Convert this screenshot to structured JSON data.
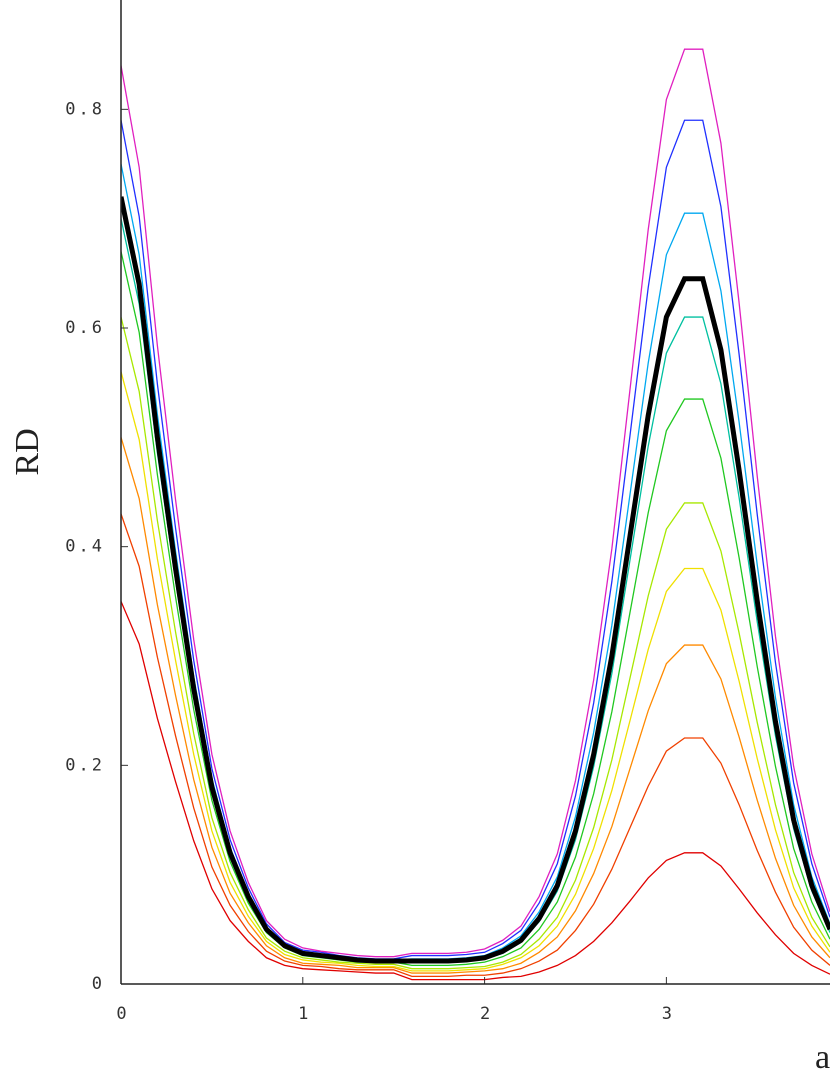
{
  "chart_data": {
    "type": "line",
    "ylabel": "RD",
    "xlabel": "a",
    "x": [
      0,
      0.1,
      0.2,
      0.3,
      0.4,
      0.5,
      0.6,
      0.7,
      0.8,
      0.9,
      1,
      1.1,
      1.2,
      1.3,
      1.4,
      1.5,
      1.6,
      1.7,
      1.8,
      1.9,
      2,
      2.1,
      2.2,
      2.3,
      2.4,
      2.5,
      2.6,
      2.7,
      2.8,
      2.9,
      3,
      3.1,
      3.2,
      3.3,
      3.4,
      3.5,
      3.6,
      3.7,
      3.8,
      3.9
    ],
    "xlim": [
      0,
      3.9
    ],
    "ylim": [
      0,
      0.9
    ],
    "xticks": [
      0,
      1,
      2,
      3
    ],
    "yticks": [
      0,
      0.2,
      0.4,
      0.6,
      0.8
    ],
    "series": [
      {
        "color": "#e00000",
        "line_width": 1.3,
        "values": [
          0.35,
          0.311,
          0.243,
          0.185,
          0.131,
          0.087,
          0.058,
          0.039,
          0.024,
          0.017,
          0.014,
          0.013,
          0.012,
          0.011,
          0.01,
          0.01,
          0.004,
          0.004,
          0.004,
          0.004,
          0.004,
          0.006,
          0.007,
          0.011,
          0.017,
          0.026,
          0.039,
          0.056,
          0.076,
          0.097,
          0.113,
          0.12,
          0.12,
          0.108,
          0.087,
          0.065,
          0.045,
          0.028,
          0.017,
          0.009
        ]
      },
      {
        "color": "#f04000",
        "line_width": 1.3,
        "values": [
          0.43,
          0.382,
          0.299,
          0.227,
          0.161,
          0.107,
          0.072,
          0.048,
          0.03,
          0.021,
          0.017,
          0.016,
          0.014,
          0.013,
          0.013,
          0.013,
          0.007,
          0.007,
          0.007,
          0.008,
          0.008,
          0.01,
          0.014,
          0.021,
          0.031,
          0.049,
          0.073,
          0.105,
          0.143,
          0.181,
          0.213,
          0.225,
          0.225,
          0.202,
          0.164,
          0.122,
          0.084,
          0.052,
          0.031,
          0.017
        ]
      },
      {
        "color": "#ff8a00",
        "line_width": 1.3,
        "values": [
          0.5,
          0.444,
          0.347,
          0.264,
          0.187,
          0.125,
          0.083,
          0.056,
          0.035,
          0.024,
          0.019,
          0.018,
          0.017,
          0.015,
          0.015,
          0.015,
          0.01,
          0.01,
          0.01,
          0.011,
          0.012,
          0.014,
          0.019,
          0.029,
          0.043,
          0.067,
          0.101,
          0.144,
          0.197,
          0.25,
          0.293,
          0.31,
          0.31,
          0.279,
          0.226,
          0.168,
          0.115,
          0.072,
          0.043,
          0.024
        ]
      },
      {
        "color": "#f0e000",
        "line_width": 1.3,
        "values": [
          0.56,
          0.498,
          0.389,
          0.296,
          0.21,
          0.14,
          0.093,
          0.062,
          0.039,
          0.027,
          0.022,
          0.02,
          0.019,
          0.017,
          0.016,
          0.016,
          0.012,
          0.012,
          0.012,
          0.013,
          0.014,
          0.018,
          0.024,
          0.035,
          0.053,
          0.082,
          0.124,
          0.177,
          0.241,
          0.306,
          0.359,
          0.38,
          0.38,
          0.342,
          0.277,
          0.206,
          0.141,
          0.088,
          0.053,
          0.029
        ]
      },
      {
        "color": "#a8e800",
        "line_width": 1.3,
        "values": [
          0.61,
          0.542,
          0.424,
          0.322,
          0.229,
          0.152,
          0.102,
          0.068,
          0.042,
          0.03,
          0.024,
          0.022,
          0.02,
          0.019,
          0.018,
          0.018,
          0.014,
          0.014,
          0.014,
          0.015,
          0.016,
          0.02,
          0.027,
          0.041,
          0.061,
          0.095,
          0.143,
          0.205,
          0.28,
          0.355,
          0.416,
          0.44,
          0.44,
          0.396,
          0.321,
          0.239,
          0.164,
          0.102,
          0.061,
          0.034
        ]
      },
      {
        "color": "#20c820",
        "line_width": 1.3,
        "values": [
          0.67,
          0.596,
          0.466,
          0.354,
          0.251,
          0.168,
          0.112,
          0.074,
          0.047,
          0.033,
          0.026,
          0.024,
          0.022,
          0.02,
          0.02,
          0.02,
          0.017,
          0.017,
          0.017,
          0.018,
          0.02,
          0.025,
          0.033,
          0.05,
          0.075,
          0.116,
          0.174,
          0.249,
          0.34,
          0.431,
          0.506,
          0.535,
          0.535,
          0.481,
          0.39,
          0.29,
          0.199,
          0.124,
          0.075,
          0.041
        ]
      },
      {
        "color": "#00c0a0",
        "line_width": 1.3,
        "values": [
          0.7,
          0.622,
          0.486,
          0.369,
          0.262,
          0.175,
          0.117,
          0.078,
          0.049,
          0.034,
          0.027,
          0.025,
          0.023,
          0.021,
          0.02,
          0.02,
          0.02,
          0.02,
          0.02,
          0.021,
          0.023,
          0.028,
          0.038,
          0.057,
          0.085,
          0.132,
          0.199,
          0.284,
          0.388,
          0.492,
          0.577,
          0.61,
          0.61,
          0.549,
          0.445,
          0.331,
          0.227,
          0.142,
          0.085,
          0.047
        ]
      },
      {
        "color": "#00a8f0",
        "line_width": 1.3,
        "values": [
          0.75,
          0.667,
          0.521,
          0.396,
          0.281,
          0.188,
          0.125,
          0.083,
          0.052,
          0.036,
          0.029,
          0.027,
          0.025,
          0.023,
          0.022,
          0.022,
          0.023,
          0.023,
          0.023,
          0.024,
          0.026,
          0.033,
          0.044,
          0.066,
          0.098,
          0.153,
          0.23,
          0.328,
          0.448,
          0.568,
          0.667,
          0.705,
          0.705,
          0.634,
          0.514,
          0.383,
          0.262,
          0.164,
          0.098,
          0.055
        ]
      },
      {
        "color": "#2030ff",
        "line_width": 1.3,
        "values": [
          0.79,
          0.702,
          0.549,
          0.417,
          0.296,
          0.197,
          0.132,
          0.088,
          0.055,
          0.038,
          0.031,
          0.029,
          0.026,
          0.024,
          0.023,
          0.023,
          0.026,
          0.026,
          0.026,
          0.027,
          0.029,
          0.037,
          0.049,
          0.074,
          0.11,
          0.172,
          0.257,
          0.368,
          0.502,
          0.637,
          0.747,
          0.79,
          0.79,
          0.711,
          0.576,
          0.429,
          0.294,
          0.184,
          0.11,
          0.061
        ]
      },
      {
        "color": "#e020c0",
        "line_width": 1.3,
        "values": [
          0.84,
          0.747,
          0.584,
          0.443,
          0.315,
          0.21,
          0.14,
          0.093,
          0.058,
          0.041,
          0.033,
          0.03,
          0.028,
          0.026,
          0.025,
          0.025,
          0.028,
          0.028,
          0.028,
          0.029,
          0.032,
          0.04,
          0.053,
          0.08,
          0.119,
          0.186,
          0.278,
          0.398,
          0.544,
          0.69,
          0.809,
          0.855,
          0.855,
          0.769,
          0.623,
          0.464,
          0.318,
          0.199,
          0.119,
          0.066
        ]
      },
      {
        "color": "#000000",
        "line_width": 5,
        "values": [
          0.72,
          0.64,
          0.5,
          0.38,
          0.27,
          0.18,
          0.12,
          0.08,
          0.05,
          0.035,
          0.028,
          0.026,
          0.024,
          0.022,
          0.021,
          0.021,
          0.021,
          0.021,
          0.021,
          0.022,
          0.024,
          0.03,
          0.04,
          0.06,
          0.09,
          0.14,
          0.21,
          0.3,
          0.41,
          0.52,
          0.61,
          0.645,
          0.645,
          0.58,
          0.47,
          0.35,
          0.24,
          0.15,
          0.09,
          0.05
        ]
      }
    ]
  }
}
